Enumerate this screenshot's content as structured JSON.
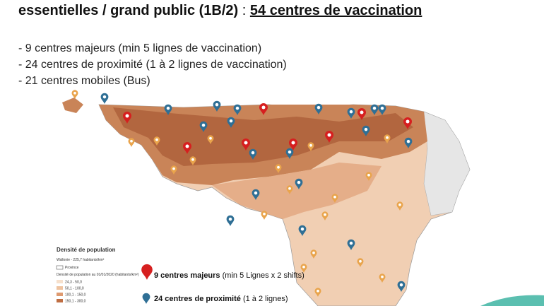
{
  "header": {
    "title_left": "essentielles / grand public (1B/2)",
    "separator": ":",
    "title_right": "54 centres de vaccination"
  },
  "bullets": [
    "- 9 centres majeurs (min 5 lignes de vaccination)",
    "- 24 centres de proximité (1 à 2 lignes de vaccination)",
    "- 21 centres mobiles (Bus)"
  ],
  "map_legend": {
    "title": "Densité de population",
    "subtitle": "Wallonie - 225,7 habitants/km²",
    "province": "Province",
    "scale_title": "Densité de population au 01/01/2020 (habitants/km²)",
    "classes": [
      "24,3 - 50,0",
      "50,1 - 100,0",
      "100,1 - 150,0",
      "150,1 - 300,0"
    ]
  },
  "pin_legend": [
    {
      "bold": "9 centres majeurs",
      "rest": "(min 5 Lignes x 2 shifts)"
    },
    {
      "bold": "24 centres de proximité",
      "rest": "(1 à 2 lignes)"
    }
  ]
}
